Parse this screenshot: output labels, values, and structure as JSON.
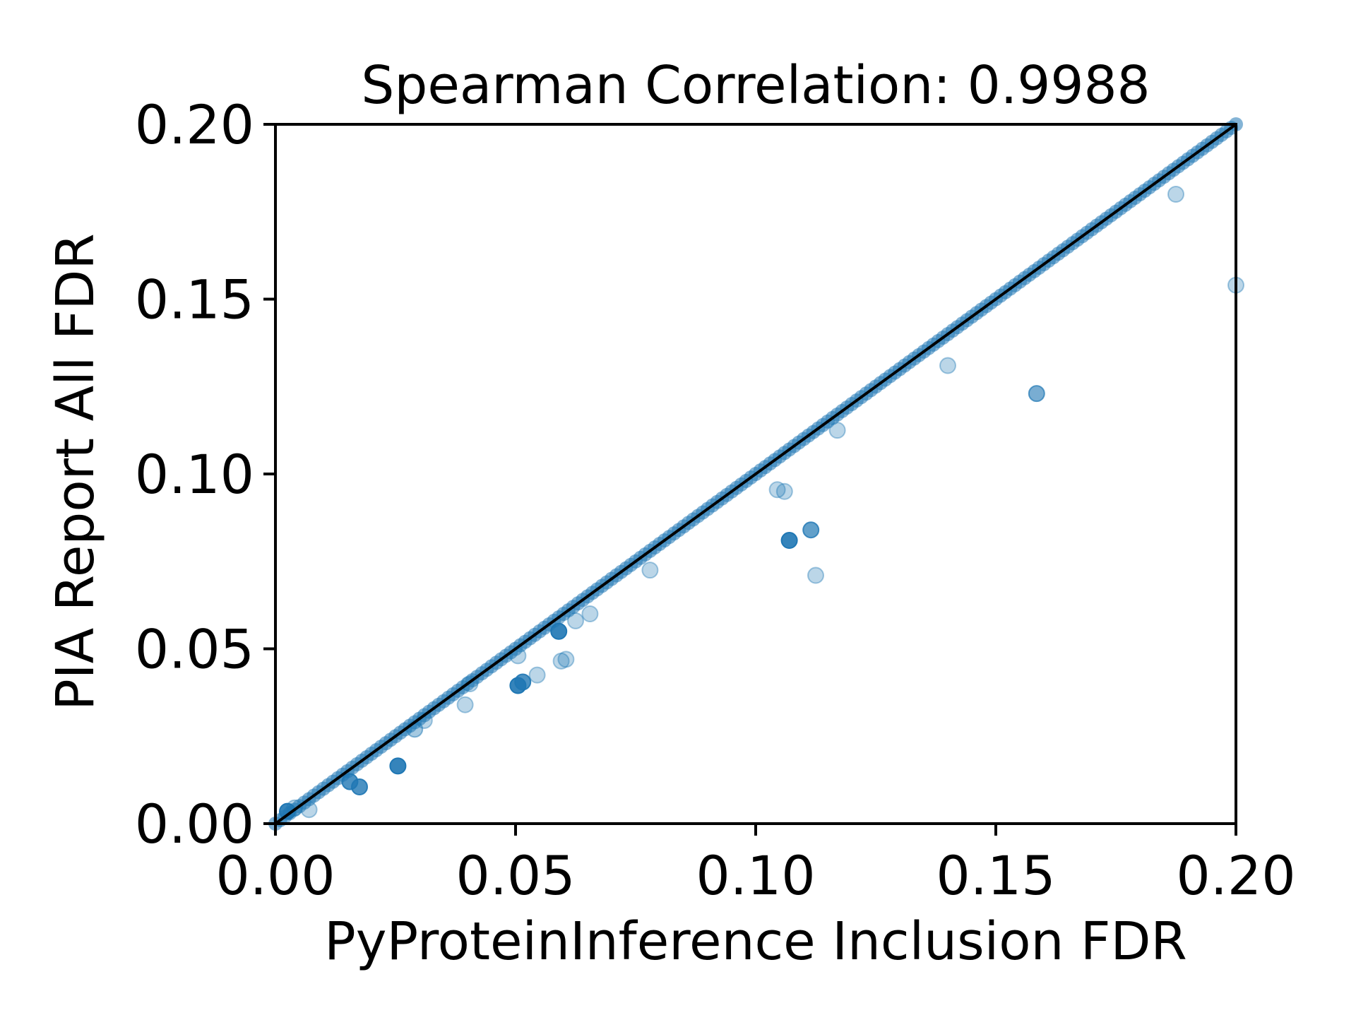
{
  "chart_data": {
    "type": "scatter",
    "title": "Spearman Correlation: 0.9988",
    "xlabel": "PyProteinInference Inclusion FDR",
    "ylabel": "PIA Report All FDR",
    "xlim": [
      0.0,
      0.2
    ],
    "ylim": [
      0.0,
      0.2
    ],
    "x_ticks": [
      "0.00",
      "0.05",
      "0.10",
      "0.15",
      "0.20"
    ],
    "y_ticks": [
      "0.00",
      "0.05",
      "0.10",
      "0.15",
      "0.20"
    ],
    "grid": false,
    "legend": "none",
    "point_color": "#1f77b4",
    "reference_line": {
      "x": [
        0.0,
        0.2
      ],
      "y": [
        0.0,
        0.2
      ],
      "color": "#000000"
    },
    "series": [
      {
        "values_description_free": true,
        "points_diagonal_dense": {
          "x_start": 0.0,
          "x_end": 0.2,
          "step": 0.001
        },
        "x": [
          0.0025,
          0.004,
          0.007,
          0.0155,
          0.0175,
          0.0255,
          0.029,
          0.031,
          0.0395,
          0.0405,
          0.0505,
          0.0515,
          0.0505,
          0.0545,
          0.059,
          0.0595,
          0.0605,
          0.0625,
          0.0655,
          0.078,
          0.1045,
          0.106,
          0.107,
          0.1115,
          0.1125,
          0.117,
          0.14,
          0.1585,
          0.1875,
          0.2
        ],
        "y": [
          0.0035,
          0.0045,
          0.004,
          0.012,
          0.0105,
          0.0165,
          0.027,
          0.0295,
          0.034,
          0.04,
          0.0395,
          0.0405,
          0.048,
          0.0425,
          0.055,
          0.0465,
          0.047,
          0.058,
          0.06,
          0.0725,
          0.0955,
          0.095,
          0.081,
          0.084,
          0.071,
          0.1125,
          0.131,
          0.123,
          0.18,
          0.154
        ],
        "opacity": [
          0.9,
          0.3,
          0.3,
          0.8,
          0.8,
          0.9,
          0.4,
          0.3,
          0.3,
          0.3,
          0.9,
          0.8,
          0.3,
          0.3,
          0.9,
          0.3,
          0.3,
          0.3,
          0.3,
          0.3,
          0.3,
          0.3,
          0.9,
          0.7,
          0.3,
          0.3,
          0.3,
          0.6,
          0.3,
          0.3
        ]
      }
    ]
  }
}
